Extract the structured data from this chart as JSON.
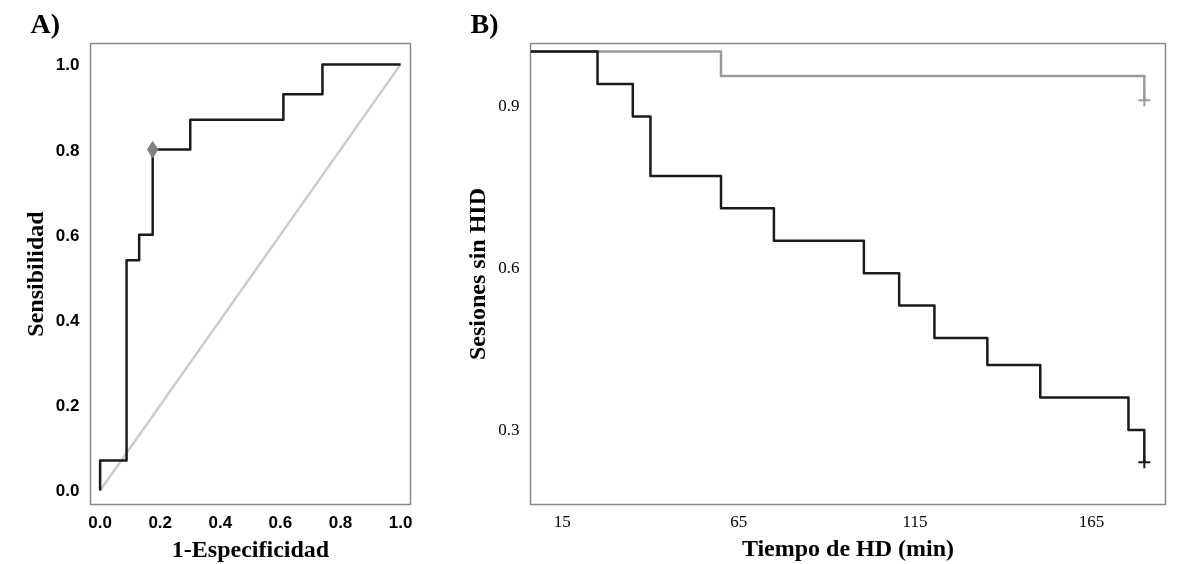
{
  "chart_data": [
    {
      "type": "line",
      "title": "A)",
      "xlabel": "1-Especificidad",
      "ylabel": "Sensibilidad",
      "xlim": [
        -0.032,
        1.033
      ],
      "ylim": [
        -0.033,
        1.049
      ],
      "xticks": [
        {
          "value": 0,
          "label": "0.0"
        },
        0.2,
        0.4,
        0.6,
        0.8,
        {
          "value": 1,
          "label": "1.0"
        }
      ],
      "yticks": [
        {
          "value": 0,
          "label": "0.0"
        },
        0.2,
        0.4,
        0.6,
        0.8,
        {
          "value": 1,
          "label": "1.0"
        }
      ],
      "grid": false,
      "series": [
        {
          "color": "#cccccc",
          "x": [
            0,
            1
          ],
          "values": [
            0,
            1
          ]
        },
        {
          "color": "#1a1a1a",
          "x": [
            0,
            0,
            0.088,
            0.088,
            0.13,
            0.13,
            0.175,
            0.175,
            0.3,
            0.3,
            0.61,
            0.61,
            0.74,
            0.74,
            1.0
          ],
          "values": [
            0,
            0.07,
            0.07,
            0.54,
            0.54,
            0.6,
            0.6,
            0.8,
            0.8,
            0.87,
            0.87,
            0.93,
            0.93,
            1.0,
            1.0
          ]
        },
        {
          "type": "scatter",
          "marker": "diamond",
          "color": "#808080",
          "x": [
            0.175
          ],
          "values": [
            0.8
          ]
        }
      ]
    },
    {
      "type": "step",
      "title": "B)",
      "xlabel": "Tiempo de HD (min)",
      "ylabel": "Sesiones sin HID",
      "xlim": [
        6,
        186
      ],
      "ylim": [
        0.162,
        1.015
      ],
      "xticks": [
        15,
        65,
        115,
        165
      ],
      "yticks": [
        0.3,
        0.6,
        0.9
      ],
      "grid": false,
      "series": [
        {
          "color": "#9a9a9a",
          "x": [
            6,
            60,
            180
          ],
          "values": [
            1.0,
            0.955,
            0.91
          ]
        },
        {
          "color": "#1a1a1a",
          "x": [
            6,
            25,
            35,
            40,
            60,
            75,
            100.5,
            110.5,
            120.5,
            135.5,
            150.5,
            175.5,
            180
          ],
          "values": [
            1.0,
            0.94,
            0.88,
            0.77,
            0.71,
            0.65,
            0.59,
            0.53,
            0.47,
            0.42,
            0.36,
            0.3,
            0.24
          ]
        },
        {
          "type": "scatter",
          "marker": "cross",
          "color": "#9a9a9a",
          "x": [
            180
          ],
          "values": [
            0.91
          ]
        },
        {
          "type": "scatter",
          "marker": "cross",
          "color": "#1a1a1a",
          "x": [
            180
          ],
          "values": [
            0.24
          ]
        }
      ]
    }
  ]
}
